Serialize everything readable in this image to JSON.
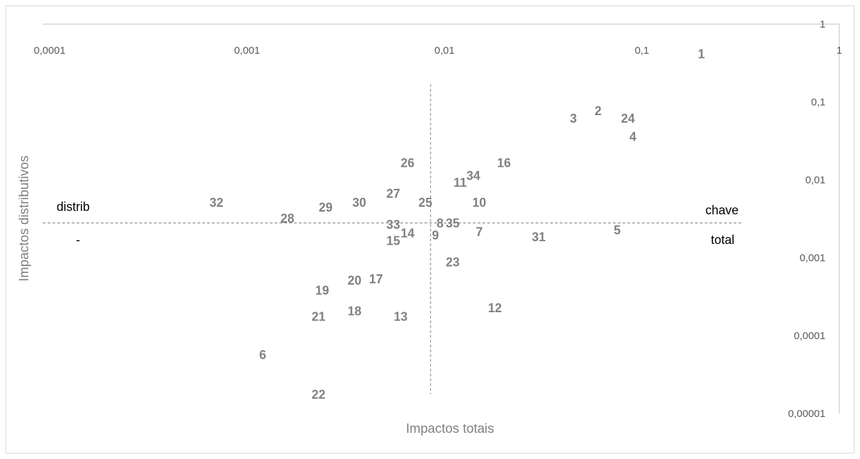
{
  "colors": {
    "label": "#808080",
    "axis_line": "#bfbfbf",
    "tick_text": "#595959",
    "guide": "#7f7f7f",
    "quadrant_text": "#000000"
  },
  "chart_data": {
    "type": "scatter",
    "xlabel": "Impactos totais",
    "ylabel": "Impactos distributivos",
    "x_scale": "log",
    "y_scale": "log",
    "xlim": [
      0.0001,
      1
    ],
    "ylim": [
      1e-05,
      1
    ],
    "x_ticks": [
      "0,0001",
      "0,001",
      "0,01",
      "0,1",
      "1"
    ],
    "y_ticks": [
      "0,00001",
      "0,0001",
      "0,001",
      "0,01",
      "0,1",
      "1"
    ],
    "grid": false,
    "legend": "none",
    "reference_lines": {
      "x": 0.0085,
      "y": 0.0028,
      "style": "dashed"
    },
    "annotations": [
      "distrib",
      "-",
      "chave",
      "total"
    ],
    "points": [
      {
        "label": "1",
        "x": 0.2,
        "y": 0.4
      },
      {
        "label": "2",
        "x": 0.06,
        "y": 0.075
      },
      {
        "label": "3",
        "x": 0.045,
        "y": 0.06
      },
      {
        "label": "4",
        "x": 0.09,
        "y": 0.035
      },
      {
        "label": "5",
        "x": 0.075,
        "y": 0.0022
      },
      {
        "label": "6",
        "x": 0.0012,
        "y": 5.5e-05
      },
      {
        "label": "7",
        "x": 0.015,
        "y": 0.0021
      },
      {
        "label": "8",
        "x": 0.0095,
        "y": 0.0027
      },
      {
        "label": "9",
        "x": 0.009,
        "y": 0.0019
      },
      {
        "label": "10",
        "x": 0.015,
        "y": 0.005
      },
      {
        "label": "11",
        "x": 0.012,
        "y": 0.009
      },
      {
        "label": "12",
        "x": 0.018,
        "y": 0.00022
      },
      {
        "label": "13",
        "x": 0.006,
        "y": 0.00017
      },
      {
        "label": "14",
        "x": 0.0065,
        "y": 0.002
      },
      {
        "label": "15",
        "x": 0.0055,
        "y": 0.0016
      },
      {
        "label": "16",
        "x": 0.02,
        "y": 0.016
      },
      {
        "label": "17",
        "x": 0.0045,
        "y": 0.00052
      },
      {
        "label": "18",
        "x": 0.0035,
        "y": 0.0002
      },
      {
        "label": "19",
        "x": 0.0024,
        "y": 0.00037
      },
      {
        "label": "20",
        "x": 0.0035,
        "y": 0.0005
      },
      {
        "label": "21",
        "x": 0.0023,
        "y": 0.00017
      },
      {
        "label": "22",
        "x": 0.0023,
        "y": 1.7e-05
      },
      {
        "label": "23",
        "x": 0.011,
        "y": 0.00085
      },
      {
        "label": "24",
        "x": 0.085,
        "y": 0.06
      },
      {
        "label": "25",
        "x": 0.008,
        "y": 0.005
      },
      {
        "label": "26",
        "x": 0.0065,
        "y": 0.016
      },
      {
        "label": "27",
        "x": 0.0055,
        "y": 0.0065
      },
      {
        "label": "28",
        "x": 0.0016,
        "y": 0.0031
      },
      {
        "label": "29",
        "x": 0.0025,
        "y": 0.0043
      },
      {
        "label": "30",
        "x": 0.0037,
        "y": 0.005
      },
      {
        "label": "31",
        "x": 0.03,
        "y": 0.0018
      },
      {
        "label": "32",
        "x": 0.0007,
        "y": 0.005
      },
      {
        "label": "33",
        "x": 0.0055,
        "y": 0.0026
      },
      {
        "label": "34",
        "x": 0.014,
        "y": 0.011
      },
      {
        "label": "35",
        "x": 0.011,
        "y": 0.0027
      }
    ]
  }
}
